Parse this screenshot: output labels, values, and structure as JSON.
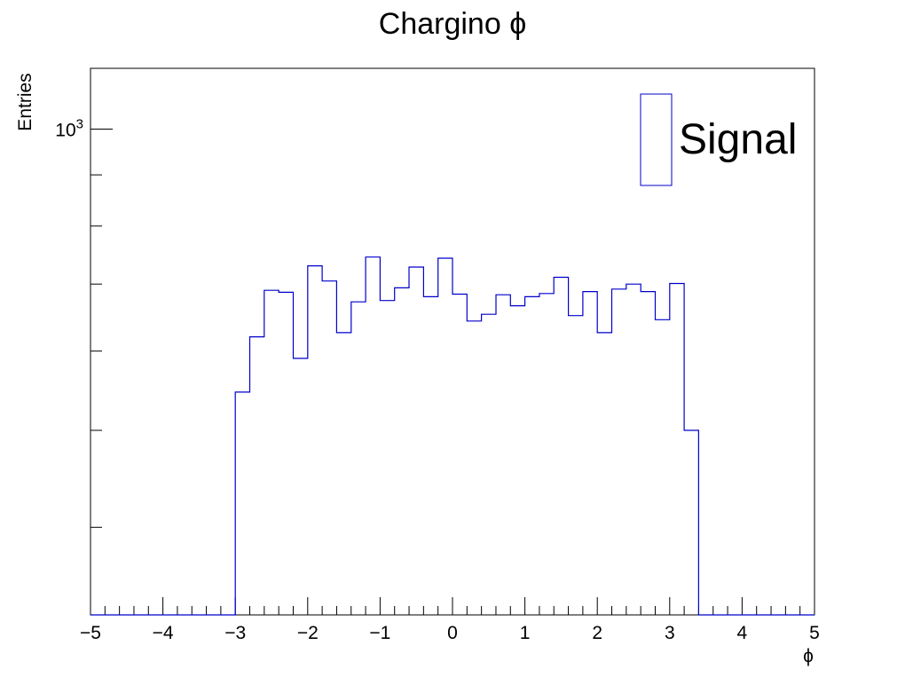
{
  "chart_data": {
    "type": "histogram",
    "title": "Chargino ϕ",
    "xlabel": "ϕ",
    "ylabel": "Entries",
    "xlim": [
      -5,
      5
    ],
    "ylog": true,
    "ylim": [
      327,
      1150
    ],
    "y_major_ticks": [
      {
        "value": 1000,
        "base": "10",
        "exp": "3"
      }
    ],
    "y_minor_ticks": [
      400,
      500,
      600,
      700,
      800,
      900
    ],
    "x_ticks": [
      {
        "value": -5,
        "label": "−5"
      },
      {
        "value": -4,
        "label": "−4"
      },
      {
        "value": -3,
        "label": "−3"
      },
      {
        "value": -2,
        "label": "−2"
      },
      {
        "value": -1,
        "label": "−1"
      },
      {
        "value": 0,
        "label": "0"
      },
      {
        "value": 1,
        "label": "1"
      },
      {
        "value": 2,
        "label": "2"
      },
      {
        "value": 3,
        "label": "3"
      },
      {
        "value": 4,
        "label": "4"
      },
      {
        "value": 5,
        "label": "5"
      }
    ],
    "x_minor_step": 0.2,
    "series": [
      {
        "name": "Signal",
        "color": "#0000cc",
        "bin_edges": [
          -5.0,
          -4.8,
          -4.6,
          -4.4,
          -4.2,
          -4.0,
          -3.8,
          -3.6,
          -3.4,
          -3.2,
          -3.0,
          -2.8,
          -2.6,
          -2.4,
          -2.2,
          -2.0,
          -1.8,
          -1.6,
          -1.4,
          -1.2,
          -1.0,
          -0.8,
          -0.6,
          -0.4,
          -0.2,
          0.0,
          0.2,
          0.4,
          0.6,
          0.8,
          1.0,
          1.2,
          1.4,
          1.6,
          1.8,
          2.0,
          2.2,
          2.4,
          2.6,
          2.8,
          3.0,
          3.2,
          3.4,
          3.6,
          3.8,
          4.0,
          4.2,
          4.4,
          4.6,
          4.8,
          5.0
        ],
        "values": [
          0,
          0,
          0,
          0,
          0,
          0,
          0,
          0,
          0,
          0,
          546,
          620,
          690,
          687,
          590,
          730,
          705,
          626,
          672,
          745,
          674,
          694,
          728,
          680,
          743,
          684,
          643,
          653,
          683,
          666,
          680,
          685,
          711,
          651,
          688,
          626,
          692,
          700,
          688,
          645,
          701,
          500,
          0,
          0,
          0,
          0,
          0,
          0,
          0,
          0
        ]
      }
    ],
    "legend": {
      "position": "top-right",
      "entries": [
        "Signal"
      ]
    }
  }
}
